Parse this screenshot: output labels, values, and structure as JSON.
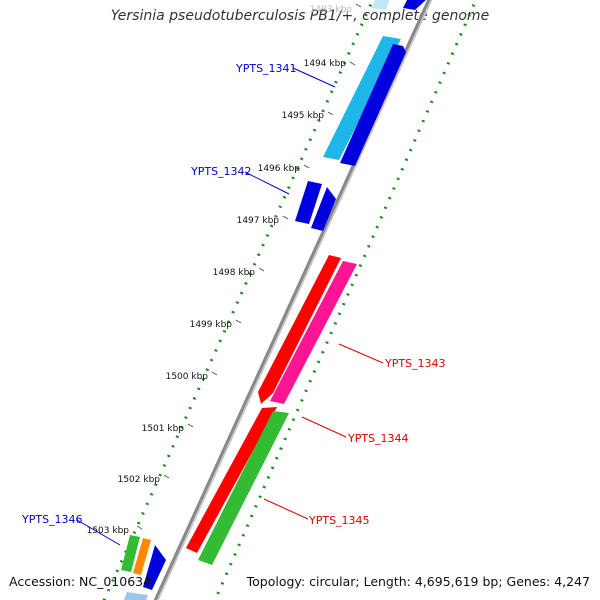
{
  "title": "Yersinia pseudotuberculosis PB1/+, complete genome",
  "accession": "Accession: NC_010634",
  "summary": "Topology: circular; Length: 4,695,619 bp; Genes: 4,247",
  "ticks": [
    "1493 kbp",
    "1494 kbp",
    "1495 kbp",
    "1496 kbp",
    "1497 kbp",
    "1498 kbp",
    "1499 kbp",
    "1500 kbp",
    "1501 kbp",
    "1502 kbp",
    "1503 kbp"
  ],
  "genes": [
    {
      "name": "YPTS_1341",
      "strand": "forward",
      "colors": [
        "#1fb6ea",
        "#0000dd"
      ]
    },
    {
      "name": "YPTS_1342",
      "strand": "forward",
      "colors": [
        "#0000dd"
      ]
    },
    {
      "name": "YPTS_1343",
      "strand": "reverse",
      "colors": [
        "#ff1493"
      ]
    },
    {
      "name": "YPTS_1344",
      "strand": "reverse",
      "colors": [
        "#ff0000"
      ]
    },
    {
      "name": "YPTS_1345",
      "strand": "reverse",
      "colors": [
        "#ff0000",
        "#33bb33"
      ]
    },
    {
      "name": "YPTS_1346",
      "strand": "forward",
      "colors": [
        "#33bb33",
        "#ff8800",
        "#0000dd"
      ]
    }
  ],
  "colors": {
    "forward_label": "#0000cc",
    "reverse_label": "#dd0000",
    "backbone": "#888888",
    "gc_ring": "#1a8c1a"
  }
}
